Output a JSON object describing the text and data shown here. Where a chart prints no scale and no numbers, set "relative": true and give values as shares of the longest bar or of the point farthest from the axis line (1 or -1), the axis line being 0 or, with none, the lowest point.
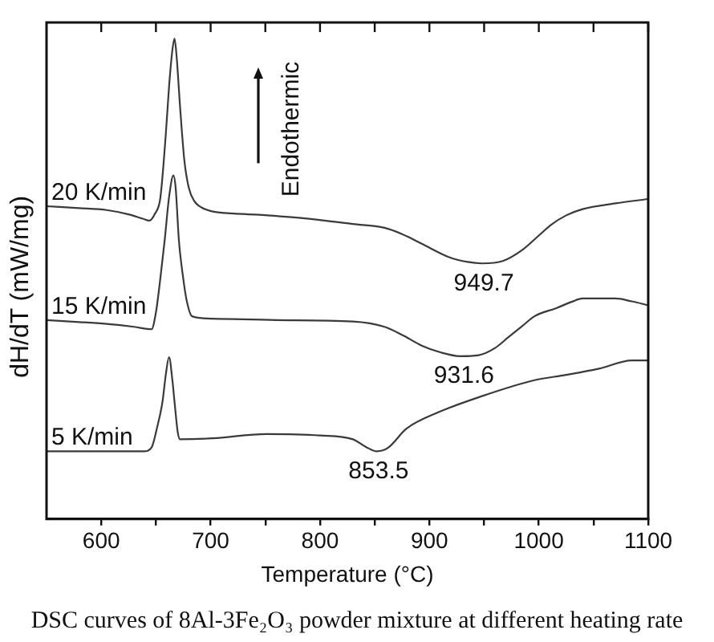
{
  "chart_data": {
    "type": "line",
    "xlabel": "Temperature (°C)",
    "ylabel": "dH/dT (mW/mg)",
    "relative": true,
    "xlim": [
      550,
      1100
    ],
    "xticks": [
      600,
      {
        "value": 650,
        "label": null
      },
      700,
      {
        "value": 750,
        "label": null
      },
      800,
      {
        "value": 850,
        "label": null
      },
      900,
      {
        "value": 950,
        "label": null
      },
      1000,
      {
        "value": 1050,
        "label": null
      },
      1100
    ],
    "grid": false,
    "marker": "none",
    "line_style": "solid",
    "series": [
      {
        "name": "20 K/min",
        "color": "#3a3a3a",
        "x": [
          550,
          580,
          605,
          625,
          638,
          644,
          649,
          654,
          659,
          662,
          665,
          667,
          669,
          672,
          676,
          680,
          685,
          692,
          702,
          730,
          752,
          790,
          830,
          859,
          875,
          893,
          918,
          935,
          948,
          967,
          986,
          1000,
          1011,
          1025,
          1040,
          1070,
          1100
        ],
        "values": [
          0.651,
          0.647,
          0.643,
          0.634,
          0.625,
          0.621,
          0.635,
          0.668,
          0.8,
          0.9,
          0.975,
          1.0,
          0.96,
          0.86,
          0.746,
          0.69,
          0.662,
          0.648,
          0.64,
          0.635,
          0.632,
          0.625,
          0.614,
          0.606,
          0.593,
          0.573,
          0.545,
          0.535,
          0.532,
          0.537,
          0.562,
          0.59,
          0.612,
          0.632,
          0.645,
          0.657,
          0.666
        ]
      },
      {
        "name": "15 K/min",
        "color": "#3a3a3a",
        "x": [
          550,
          580,
          605,
          630,
          646,
          650,
          654,
          658,
          662,
          666,
          668,
          671,
          675,
          678,
          683,
          702,
          760,
          830,
          859,
          876,
          893,
          910,
          928,
          945,
          960,
          972,
          985,
          996,
          1016,
          1030,
          1040,
          1070,
          1085,
          1100
        ],
        "values": [
          0.414,
          0.41,
          0.406,
          0.4,
          0.395,
          0.43,
          0.5,
          0.58,
          0.67,
          0.715,
          0.69,
          0.58,
          0.5,
          0.456,
          0.422,
          0.417,
          0.414,
          0.411,
          0.4,
          0.382,
          0.361,
          0.347,
          0.339,
          0.341,
          0.356,
          0.378,
          0.402,
          0.422,
          0.439,
          0.452,
          0.459,
          0.459,
          0.453,
          0.445
        ]
      },
      {
        "name": "5 K/min",
        "color": "#3a3a3a",
        "x": [
          550,
          600,
          639,
          646,
          651,
          656,
          659,
          662,
          665,
          667,
          670,
          672,
          702,
          751,
          800,
          830,
          842,
          852,
          862,
          879,
          908,
          947,
          996,
          1025,
          1055,
          1085,
          1100
        ],
        "values": [
          0.141,
          0.141,
          0.141,
          0.149,
          0.19,
          0.244,
          0.3,
          0.337,
          0.29,
          0.244,
          0.18,
          0.166,
          0.168,
          0.177,
          0.174,
          0.166,
          0.15,
          0.141,
          0.148,
          0.188,
          0.222,
          0.255,
          0.289,
          0.3,
          0.313,
          0.33,
          0.33
        ]
      }
    ],
    "annotations": [
      "Endothermic",
      {
        "text": "949.7",
        "x": 949.7,
        "y": 0.532
      },
      {
        "text": "931.6",
        "x": 931.6,
        "y": 0.339
      },
      {
        "text": "853.5",
        "x": 853.5,
        "y": 0.141
      },
      "DSC curves of 8Al-3Fe₂O₃ powder mixture at different heating rate"
    ]
  }
}
